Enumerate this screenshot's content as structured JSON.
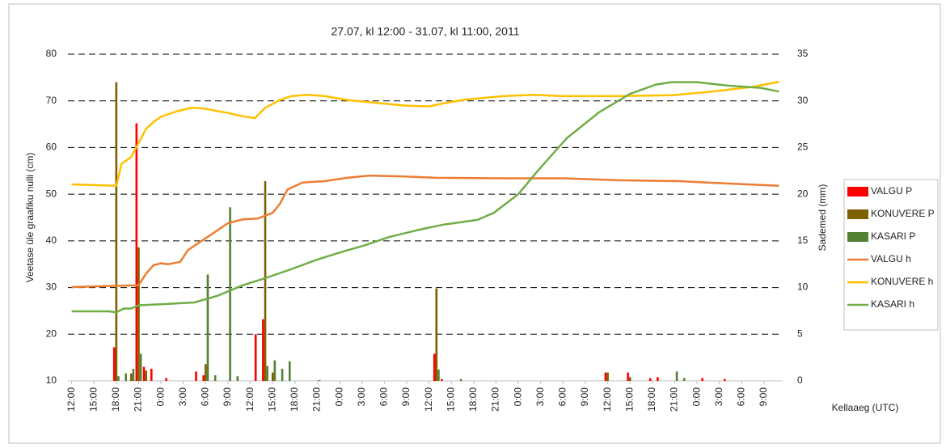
{
  "chart_data": {
    "type": "combo",
    "title": "27.07, kl 12:00 - 31.07, kl 11:00, 2011",
    "ylabel": "Veetase üle graafiku nulli (cm)",
    "y2label": "Sademed (mm)",
    "xlabel": "Kellaaeg (UTC)",
    "xlim": [
      -0.5,
      95.5
    ],
    "xticks": [
      {
        "value": 0,
        "label": "12:00"
      },
      {
        "value": 3,
        "label": "15:00"
      },
      {
        "value": 6,
        "label": "18:00"
      },
      {
        "value": 9,
        "label": "21:00"
      },
      {
        "value": 12,
        "label": "0:00"
      },
      {
        "value": 15,
        "label": "3:00"
      },
      {
        "value": 18,
        "label": "6:00"
      },
      {
        "value": 21,
        "label": "9:00"
      },
      {
        "value": 24,
        "label": "12:00"
      },
      {
        "value": 27,
        "label": "15:00"
      },
      {
        "value": 30,
        "label": "18:00"
      },
      {
        "value": 33,
        "label": "21:00"
      },
      {
        "value": 36,
        "label": "0:00"
      },
      {
        "value": 39,
        "label": "3:00"
      },
      {
        "value": 42,
        "label": "6:00"
      },
      {
        "value": 45,
        "label": "9:00"
      },
      {
        "value": 48,
        "label": "12:00"
      },
      {
        "value": 51,
        "label": "15:00"
      },
      {
        "value": 54,
        "label": "18:00"
      },
      {
        "value": 57,
        "label": "21:00"
      },
      {
        "value": 60,
        "label": "0:00"
      },
      {
        "value": 63,
        "label": "3:00"
      },
      {
        "value": 66,
        "label": "6:00"
      },
      {
        "value": 69,
        "label": "9:00"
      },
      {
        "value": 72,
        "label": "12:00"
      },
      {
        "value": 75,
        "label": "15:00"
      },
      {
        "value": 78,
        "label": "18:00"
      },
      {
        "value": 81,
        "label": "21:00"
      },
      {
        "value": 84,
        "label": "0:00"
      },
      {
        "value": 87,
        "label": "3:00"
      },
      {
        "value": 90,
        "label": "6:00"
      },
      {
        "value": 93,
        "label": "9:00"
      }
    ],
    "ylim": [
      10,
      80
    ],
    "yticks": [
      10,
      20,
      30,
      40,
      50,
      60,
      70,
      80
    ],
    "y2lim": [
      0,
      35
    ],
    "y2ticks": [
      0,
      5,
      10,
      15,
      20,
      25,
      30,
      35
    ],
    "grid": true,
    "legend": "right",
    "series": [
      {
        "name": "VALGU P",
        "type": "bar",
        "axis": "y2",
        "color": "#ff0000",
        "x": [
          6,
          9,
          10,
          11,
          13,
          17,
          18,
          25,
          26,
          49,
          50,
          72,
          75,
          78,
          79,
          85,
          88
        ],
        "values": [
          3.6,
          27.6,
          1.5,
          1.3,
          0.3,
          1.0,
          0.6,
          5,
          6.6,
          2.9,
          0.2,
          0.9,
          0.9,
          0.3,
          0.4,
          0.3,
          0.2
        ]
      },
      {
        "name": "KONUVERE P",
        "type": "bar",
        "axis": "y2",
        "color": "#7f6000",
        "x": [
          6,
          8,
          9,
          10,
          18,
          26,
          27,
          49,
          72,
          75
        ],
        "values": [
          32,
          0.8,
          14.3,
          1.1,
          1.8,
          21.4,
          0.9,
          9.9,
          0.9,
          0.4
        ]
      },
      {
        "name": "KASARI P",
        "type": "bar",
        "axis": "y2",
        "color": "#548235",
        "x": [
          6,
          7,
          8,
          9,
          18,
          19,
          21,
          22,
          26,
          27,
          28,
          29,
          33,
          49,
          52,
          81,
          82
        ],
        "values": [
          0.5,
          0.8,
          1.3,
          2.9,
          11.4,
          0.6,
          18.6,
          0.5,
          1.6,
          2.2,
          1.3,
          2.1,
          0.1,
          1.2,
          0.2,
          1.0,
          0.3
        ]
      },
      {
        "name": "VALGU h",
        "type": "line",
        "color": "#ed7d31",
        "x": [
          0,
          9,
          10,
          11,
          12,
          13,
          14.6,
          15.6,
          17,
          18.6,
          21,
          23,
          25,
          27,
          28,
          29,
          31,
          34,
          37,
          40,
          44.7,
          49,
          58,
          66,
          73,
          81.6,
          88,
          95
        ],
        "values": [
          30.1,
          30.5,
          33,
          34.8,
          35.2,
          35.0,
          35.5,
          38,
          39.5,
          41.2,
          43.8,
          44.6,
          44.8,
          46,
          48,
          51,
          52.5,
          52.8,
          53.5,
          54,
          53.8,
          53.5,
          53.4,
          53.4,
          53.0,
          52.8,
          52.3,
          51.8
        ]
      },
      {
        "name": "KONUVERE h",
        "type": "line",
        "color": "#ffc000",
        "x": [
          0,
          6,
          6.7,
          8,
          9,
          10,
          11,
          12,
          14,
          16,
          17.5,
          21,
          23,
          24.6,
          26,
          28,
          29.5,
          31.6,
          34,
          37,
          40,
          44.7,
          48,
          50,
          53,
          58,
          62,
          66,
          73,
          80.6,
          86,
          91.5,
          95
        ],
        "values": [
          52.1,
          51.8,
          56.5,
          58,
          61,
          64,
          65.5,
          66.6,
          67.7,
          68.5,
          68.4,
          67.4,
          66.7,
          66.3,
          68.5,
          70.2,
          71,
          71.3,
          71.0,
          70.2,
          69.7,
          69,
          68.8,
          69.5,
          70.3,
          71.0,
          71.3,
          71.0,
          71.0,
          71.2,
          72,
          73,
          74.1
        ]
      },
      {
        "name": "KASARI h",
        "type": "line",
        "color": "#70ad47",
        "x": [
          0,
          5,
          6,
          7,
          8,
          9,
          12,
          16.5,
          18,
          19.7,
          23,
          26,
          29.6,
          33,
          36,
          39.3,
          42.6,
          47,
          50,
          54.5,
          56.7,
          60,
          62.6,
          66.5,
          70.8,
          75,
          78.5,
          80.6,
          84,
          88,
          92.5,
          95
        ],
        "values": [
          24.9,
          24.9,
          24.7,
          25.5,
          25.5,
          26.2,
          26.4,
          26.8,
          27.5,
          28.3,
          30.5,
          32,
          34,
          36,
          37.5,
          39,
          40.8,
          42.5,
          43.5,
          44.5,
          46,
          50,
          55,
          62,
          67.5,
          71.5,
          73.5,
          74,
          74,
          73.3,
          72.8,
          72
        ]
      }
    ]
  }
}
